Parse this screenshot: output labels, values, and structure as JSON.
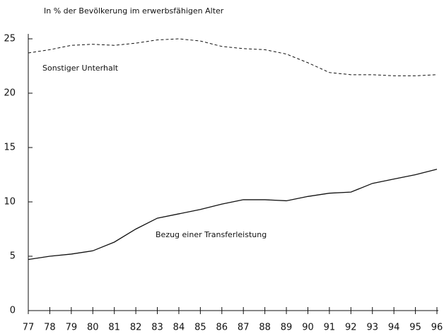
{
  "chart_data": {
    "type": "line",
    "subtitle": "In % der Bevölkerung im erwerbsfähigen Alter",
    "categories": [
      "77",
      "78",
      "79",
      "80",
      "81",
      "82",
      "83",
      "84",
      "85",
      "86",
      "87",
      "88",
      "89",
      "90",
      "91",
      "92",
      "93",
      "94",
      "95",
      "96"
    ],
    "series": [
      {
        "name": "Sonstiger Unterhalt",
        "color": "#111111",
        "dashed": true,
        "values": [
          23.7,
          24.0,
          24.4,
          24.5,
          24.4,
          24.6,
          24.9,
          25.0,
          24.8,
          24.3,
          24.1,
          24.0,
          23.6,
          22.8,
          21.9,
          21.7,
          21.7,
          21.6,
          21.6,
          21.7
        ]
      },
      {
        "name": "Bezug einer Transferleistung",
        "color": "#111111",
        "dashed": false,
        "values": [
          4.7,
          5.0,
          5.2,
          5.5,
          6.3,
          7.5,
          8.5,
          8.9,
          9.3,
          9.8,
          10.2,
          10.2,
          10.1,
          10.5,
          10.8,
          10.9,
          11.7,
          12.1,
          12.5,
          13.0
        ]
      }
    ],
    "ylim": [
      0,
      25
    ],
    "yticks": [
      0,
      5,
      10,
      15,
      20,
      25
    ],
    "grid": false
  }
}
